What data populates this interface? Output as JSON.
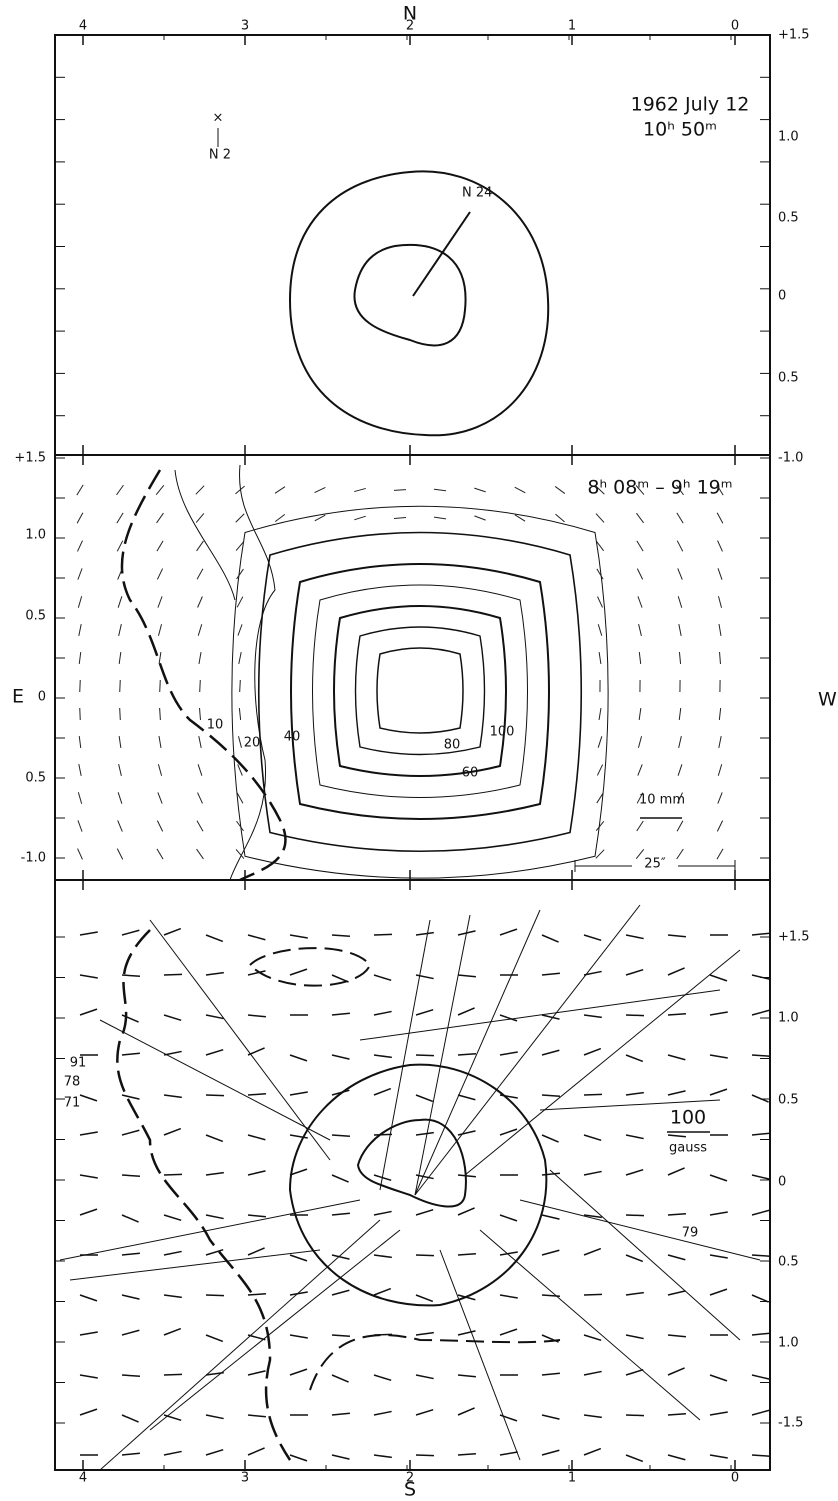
{
  "figure": {
    "top_axis": {
      "label": "N",
      "ticks": [
        "4",
        "3",
        "2",
        "1",
        "0"
      ]
    },
    "bottom_axis": {
      "label": "S",
      "ticks": [
        "4",
        "3",
        "2",
        "1",
        "0"
      ]
    },
    "east_label": "E",
    "west_label": "W",
    "panels": [
      {
        "title": "1962 July 12",
        "subtitle": "10ʰ 50ᵐ",
        "ticks": [
          "+1.5",
          "1.0",
          "0.5",
          "0",
          "0.5",
          "-1.0"
        ],
        "annotations": [
          "N 24",
          "N 2"
        ]
      },
      {
        "title": "8ʰ 08ᵐ – 9ʰ 19ᵐ",
        "ticks": [
          "+1.5",
          "1.0",
          "0.5",
          "0",
          "0.5",
          "-1.0"
        ],
        "contour_labels": [
          "10",
          "20",
          "40",
          "60",
          "80",
          "100"
        ],
        "scale_labels": [
          "10 mm",
          "25″"
        ]
      },
      {
        "ticks": [
          "+1.5",
          "1.0",
          "0.5",
          "0",
          "0.5",
          "1.0",
          "-1.5"
        ],
        "annotations": [
          "91",
          "78",
          "71",
          "79"
        ],
        "scale_labels": [
          "100",
          "gauss"
        ]
      }
    ]
  }
}
